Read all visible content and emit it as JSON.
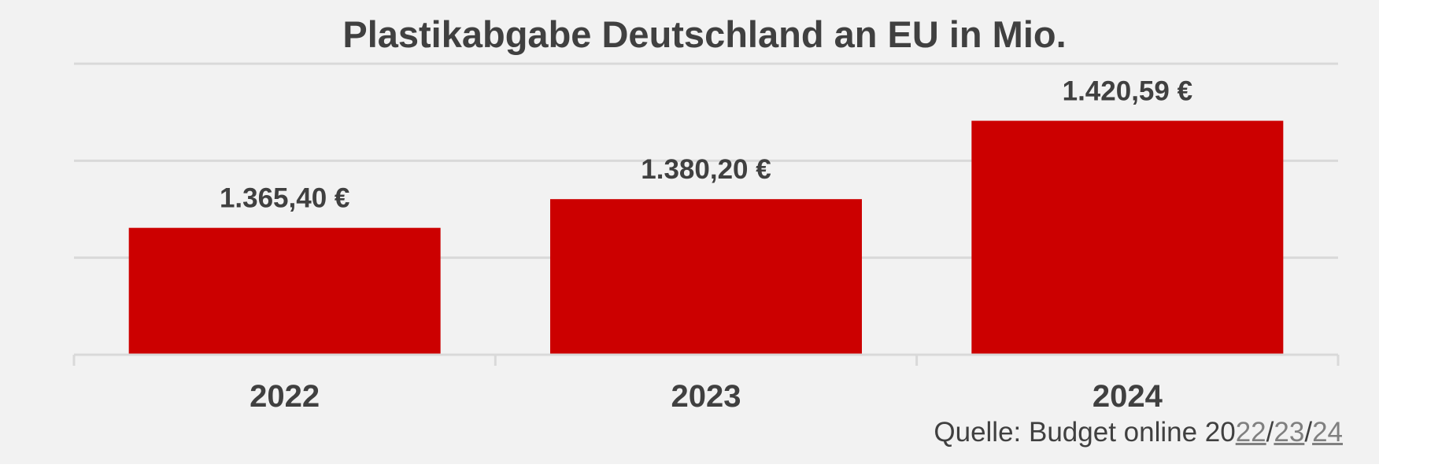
{
  "chart_data": {
    "type": "bar",
    "title": "Plastikabgabe Deutschland an EU in Mio.",
    "categories": [
      "2022",
      "2023",
      "2024"
    ],
    "values": [
      1365.4,
      1380.2,
      1420.59
    ],
    "data_labels": [
      "1.365,40 €",
      "1.380,20 €",
      "1.420,59 €"
    ],
    "ylim": [
      1300,
      1450
    ],
    "grid": true,
    "axis_labels_shown": false,
    "bar_color": "#cc0000"
  },
  "source": {
    "prefix": "Quelle: Budget online 20",
    "links": [
      "22",
      "23",
      "24"
    ],
    "separator": "/"
  }
}
